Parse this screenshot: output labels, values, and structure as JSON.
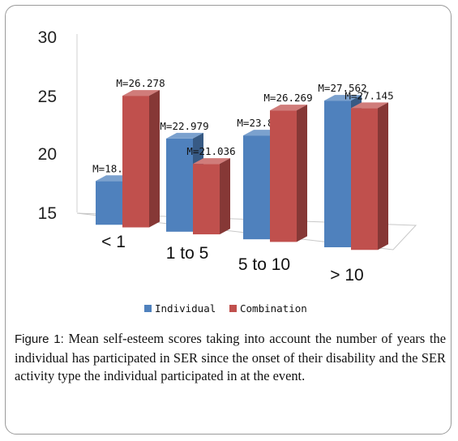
{
  "chart_data": {
    "type": "bar",
    "categories": [
      "< 1",
      "1 to 5",
      "5 to 10",
      "> 10"
    ],
    "series": [
      {
        "name": "Individual",
        "values": [
          18.75,
          22.979,
          23.893,
          27.562
        ],
        "labels": [
          "M=18.75",
          "M=22.979",
          "M=23.893",
          "M=27.562"
        ],
        "color": "#4f81bd"
      },
      {
        "name": "Combination",
        "values": [
          26.278,
          21.036,
          26.269,
          27.145
        ],
        "labels": [
          "M=26.278",
          "M=21.036",
          "M=26.269",
          "M=27.145"
        ],
        "color": "#c0504d"
      }
    ],
    "y_ticks": [
      "30",
      "25",
      "20",
      "15"
    ],
    "ylim": [
      15,
      30
    ],
    "style": "3d-clustered-column",
    "legend_position": "bottom"
  },
  "caption": {
    "lead": "Figure 1:",
    "text": " Mean self-esteem scores taking into account the number of years the individual has participated in SER since the onset of their disability and the SER activity type the individual participated in at the event."
  }
}
